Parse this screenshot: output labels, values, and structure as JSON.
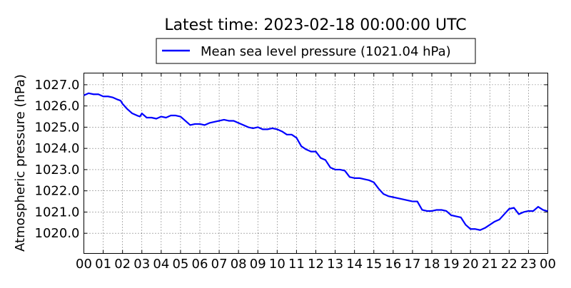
{
  "chart_data": {
    "type": "line",
    "title": "Latest time: 2023-02-18 00:00:00 UTC",
    "ylabel": "Atmospheric pressure (hPa)",
    "xlabel": "",
    "x_range_hours": [
      0,
      24
    ],
    "ylim": [
      1019.05,
      1027.55
    ],
    "x_ticks": [
      0,
      1,
      2,
      3,
      4,
      5,
      6,
      7,
      8,
      9,
      10,
      11,
      12,
      13,
      14,
      15,
      16,
      17,
      18,
      19,
      20,
      21,
      22,
      23,
      24
    ],
    "x_tick_labels": [
      "00",
      "01",
      "02",
      "03",
      "04",
      "05",
      "06",
      "07",
      "08",
      "09",
      "10",
      "11",
      "12",
      "13",
      "14",
      "15",
      "16",
      "17",
      "18",
      "19",
      "20",
      "21",
      "22",
      "23",
      "00"
    ],
    "y_ticks": [
      1020.0,
      1021.0,
      1022.0,
      1023.0,
      1024.0,
      1025.0,
      1026.0,
      1027.0
    ],
    "y_tick_labels": [
      "1020.0",
      "1021.0",
      "1022.0",
      "1023.0",
      "1024.0",
      "1025.0",
      "1026.0",
      "1027.0"
    ],
    "grid": true,
    "legend_placement": "top-center",
    "series": [
      {
        "name": "Mean sea level pressure (1021.04 hPa)",
        "color": "#0000ff",
        "points": [
          [
            0.0,
            1026.5
          ],
          [
            0.25,
            1026.6
          ],
          [
            0.5,
            1026.55
          ],
          [
            0.75,
            1026.55
          ],
          [
            1.0,
            1026.45
          ],
          [
            1.25,
            1026.45
          ],
          [
            1.5,
            1026.4
          ],
          [
            1.75,
            1026.3
          ],
          [
            1.9,
            1026.25
          ],
          [
            2.0,
            1026.1
          ],
          [
            2.25,
            1025.85
          ],
          [
            2.5,
            1025.65
          ],
          [
            2.75,
            1025.55
          ],
          [
            2.9,
            1025.5
          ],
          [
            3.0,
            1025.65
          ],
          [
            3.25,
            1025.45
          ],
          [
            3.5,
            1025.45
          ],
          [
            3.75,
            1025.4
          ],
          [
            4.0,
            1025.5
          ],
          [
            4.25,
            1025.45
          ],
          [
            4.5,
            1025.55
          ],
          [
            4.75,
            1025.55
          ],
          [
            5.0,
            1025.5
          ],
          [
            5.25,
            1025.3
          ],
          [
            5.5,
            1025.1
          ],
          [
            5.75,
            1025.15
          ],
          [
            6.0,
            1025.15
          ],
          [
            6.25,
            1025.1
          ],
          [
            6.5,
            1025.2
          ],
          [
            6.75,
            1025.25
          ],
          [
            7.0,
            1025.3
          ],
          [
            7.25,
            1025.35
          ],
          [
            7.5,
            1025.3
          ],
          [
            7.75,
            1025.3
          ],
          [
            8.0,
            1025.2
          ],
          [
            8.25,
            1025.1
          ],
          [
            8.5,
            1025.0
          ],
          [
            8.75,
            1024.95
          ],
          [
            9.0,
            1025.0
          ],
          [
            9.25,
            1024.9
          ],
          [
            9.5,
            1024.9
          ],
          [
            9.75,
            1024.95
          ],
          [
            10.0,
            1024.9
          ],
          [
            10.25,
            1024.8
          ],
          [
            10.5,
            1024.65
          ],
          [
            10.75,
            1024.65
          ],
          [
            11.0,
            1024.5
          ],
          [
            11.25,
            1024.1
          ],
          [
            11.5,
            1023.95
          ],
          [
            11.75,
            1023.85
          ],
          [
            12.0,
            1023.85
          ],
          [
            12.25,
            1023.55
          ],
          [
            12.5,
            1023.45
          ],
          [
            12.75,
            1023.1
          ],
          [
            13.0,
            1023.0
          ],
          [
            13.25,
            1023.0
          ],
          [
            13.5,
            1022.95
          ],
          [
            13.75,
            1022.65
          ],
          [
            14.0,
            1022.6
          ],
          [
            14.25,
            1022.6
          ],
          [
            14.5,
            1022.55
          ],
          [
            14.75,
            1022.5
          ],
          [
            15.0,
            1022.4
          ],
          [
            15.25,
            1022.1
          ],
          [
            15.5,
            1021.85
          ],
          [
            15.75,
            1021.75
          ],
          [
            16.0,
            1021.7
          ],
          [
            16.25,
            1021.65
          ],
          [
            16.5,
            1021.6
          ],
          [
            16.75,
            1021.55
          ],
          [
            17.0,
            1021.5
          ],
          [
            17.25,
            1021.5
          ],
          [
            17.5,
            1021.1
          ],
          [
            17.75,
            1021.05
          ],
          [
            18.0,
            1021.05
          ],
          [
            18.25,
            1021.1
          ],
          [
            18.5,
            1021.1
          ],
          [
            18.75,
            1021.05
          ],
          [
            19.0,
            1020.85
          ],
          [
            19.25,
            1020.8
          ],
          [
            19.5,
            1020.75
          ],
          [
            19.75,
            1020.4
          ],
          [
            20.0,
            1020.2
          ],
          [
            20.25,
            1020.2
          ],
          [
            20.5,
            1020.15
          ],
          [
            20.75,
            1020.25
          ],
          [
            21.0,
            1020.4
          ],
          [
            21.25,
            1020.55
          ],
          [
            21.5,
            1020.65
          ],
          [
            21.75,
            1020.9
          ],
          [
            22.0,
            1021.15
          ],
          [
            22.25,
            1021.2
          ],
          [
            22.5,
            1020.9
          ],
          [
            22.75,
            1021.0
          ],
          [
            23.0,
            1021.05
          ],
          [
            23.25,
            1021.05
          ],
          [
            23.5,
            1021.25
          ],
          [
            23.75,
            1021.1
          ],
          [
            24.0,
            1021.04
          ]
        ]
      }
    ]
  }
}
